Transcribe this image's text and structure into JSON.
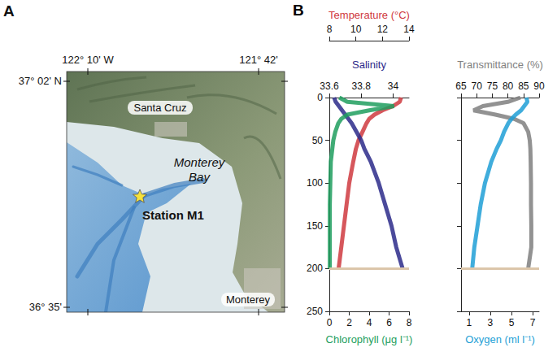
{
  "panel_a": {
    "label": "A",
    "lon_labels": [
      "122° 10' W",
      "121° 42'"
    ],
    "lat_labels": [
      "37° 02' N",
      "36° 35'"
    ],
    "places": [
      "Santa Cruz",
      "Monterey"
    ],
    "water_label": [
      "Monterey",
      "Bay"
    ],
    "station": "Station M1"
  },
  "panel_b": {
    "label": "B"
  },
  "chart_data": [
    {
      "type": "line",
      "y": [
        0,
        5,
        10,
        15,
        20,
        25,
        30,
        40,
        50,
        60,
        75,
        100,
        125,
        150,
        175,
        200
      ],
      "ylim": [
        0,
        250
      ],
      "yticks": [
        0,
        50,
        100,
        150,
        200,
        250
      ],
      "x_axes": [
        {
          "label": "Temperature (°C)",
          "side": "top",
          "xlim": [
            8,
            14
          ],
          "xticks": [
            8,
            10,
            12,
            14
          ],
          "color": "#cf3a3f",
          "values": [
            13.4,
            13.3,
            12.8,
            12.0,
            11.4,
            11.0,
            10.8,
            10.5,
            10.2,
            10.0,
            9.8,
            9.5,
            9.3,
            9.1,
            8.9,
            8.7
          ]
        },
        {
          "label": "Salinity",
          "side": "top",
          "xlim": [
            33.6,
            34.1
          ],
          "xticks": [
            33.6,
            33.8,
            34
          ],
          "color": "#2c2a8a",
          "values": [
            33.63,
            33.64,
            33.66,
            33.68,
            33.7,
            33.72,
            33.74,
            33.77,
            33.8,
            33.82,
            33.86,
            33.91,
            33.95,
            33.99,
            34.02,
            34.06
          ]
        },
        {
          "label": "Chlorophyll (μg l⁻¹)",
          "side": "bottom",
          "xlim": [
            0,
            8
          ],
          "xticks": [
            0,
            2,
            4,
            6,
            8
          ],
          "color": "#1e9e5e",
          "values": [
            1.0,
            1.8,
            6.5,
            4.0,
            1.8,
            1.2,
            0.9,
            0.6,
            0.4,
            0.3,
            0.15,
            0.1,
            0.05,
            0.05,
            0.05,
            0.05
          ]
        }
      ],
      "hline": {
        "y": 200,
        "color": "#dcc6aa"
      }
    },
    {
      "type": "line",
      "y": [
        0,
        5,
        10,
        15,
        20,
        25,
        30,
        40,
        50,
        60,
        75,
        100,
        125,
        150,
        175,
        200
      ],
      "ylim": [
        0,
        250
      ],
      "yticks": [
        0,
        50,
        100,
        150,
        200,
        250
      ],
      "tick_labels": "x",
      "x_axes": [
        {
          "label": "Transmittance (%)",
          "side": "top",
          "xlim": [
            65,
            90
          ],
          "xticks": [
            65,
            70,
            75,
            80,
            85,
            90
          ],
          "color": "#7f7f7f",
          "values": [
            84,
            80,
            72,
            69,
            76,
            82,
            85,
            86.5,
            87,
            87.2,
            87.3,
            87.4,
            87.4,
            87.5,
            87.5,
            86.5
          ]
        },
        {
          "label": "Oxygen (ml l⁻¹)",
          "side": "bottom",
          "xlim": [
            0.25,
            7.6
          ],
          "xticks": [
            1,
            3,
            5,
            7
          ],
          "color": "#1e9fd6",
          "values": [
            6.4,
            6.5,
            6.2,
            5.9,
            5.4,
            5.0,
            4.7,
            4.3,
            4.0,
            3.6,
            3.1,
            2.5,
            2.1,
            1.8,
            1.5,
            1.3
          ]
        }
      ],
      "hline": {
        "y": 200,
        "color": "#dcc6aa"
      }
    }
  ]
}
